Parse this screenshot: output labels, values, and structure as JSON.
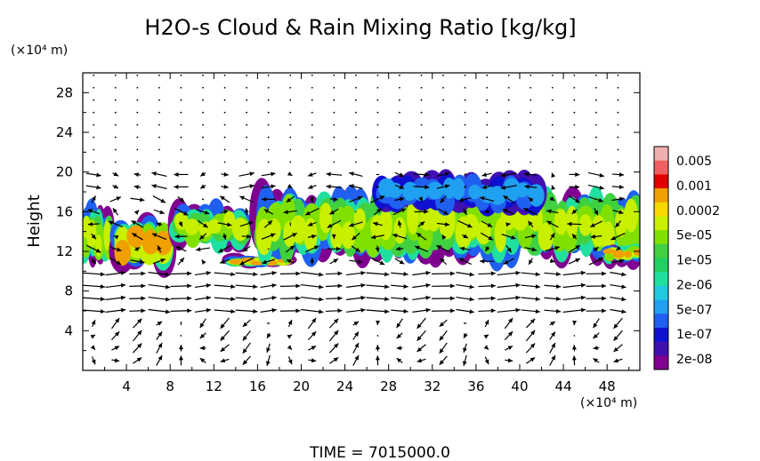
{
  "chart_data": {
    "type": "heatmap",
    "title": "H2O-s Cloud & Rain Mixing Ratio [kg/kg]",
    "ylabel": "Height",
    "x_unit": "(×10⁴ m)",
    "y_unit": "(×10⁴ m)",
    "xlim": [
      0,
      51
    ],
    "ylim": [
      0,
      30
    ],
    "x_ticks": [
      4,
      8,
      12,
      16,
      20,
      24,
      28,
      32,
      36,
      40,
      44,
      48
    ],
    "y_ticks": [
      4,
      8,
      12,
      16,
      20,
      24,
      28
    ],
    "time_label": "TIME  =  7015000.0",
    "colorbar": {
      "labels": [
        "0.005",
        "0.001",
        "0.0002",
        "5e-05",
        "1e-05",
        "2e-06",
        "5e-07",
        "1e-07",
        "2e-08"
      ],
      "colors": [
        "#f0b0b0",
        "#f06060",
        "#e00000",
        "#f0a000",
        "#f8d800",
        "#c8f000",
        "#80e000",
        "#40d040",
        "#20d060",
        "#20e0a0",
        "#20c8e0",
        "#20a0f0",
        "#2060f0",
        "#1010d0",
        "#4010b0",
        "#800090"
      ]
    },
    "cloud_regions": [
      {
        "x_range": [
          0,
          2.5
        ],
        "y_range": [
          11,
          16
        ],
        "level": "5e-05"
      },
      {
        "x_range": [
          3,
          8
        ],
        "y_range": [
          10.5,
          15
        ],
        "level": "0.0002"
      },
      {
        "x_range": [
          8.5,
          15
        ],
        "y_range": [
          12.5,
          16.5
        ],
        "level": "5e-05"
      },
      {
        "x_range": [
          13.5,
          19
        ],
        "y_range": [
          10.5,
          11.5
        ],
        "level": "0.0002"
      },
      {
        "x_range": [
          16,
          51
        ],
        "y_range": [
          11.5,
          17.5
        ],
        "level": "5e-05"
      },
      {
        "x_range": [
          27,
          42
        ],
        "y_range": [
          16,
          19.5
        ],
        "level": "1e-07"
      },
      {
        "x_range": [
          48,
          51
        ],
        "y_range": [
          11,
          12.5
        ],
        "level": "0.0002"
      }
    ]
  }
}
